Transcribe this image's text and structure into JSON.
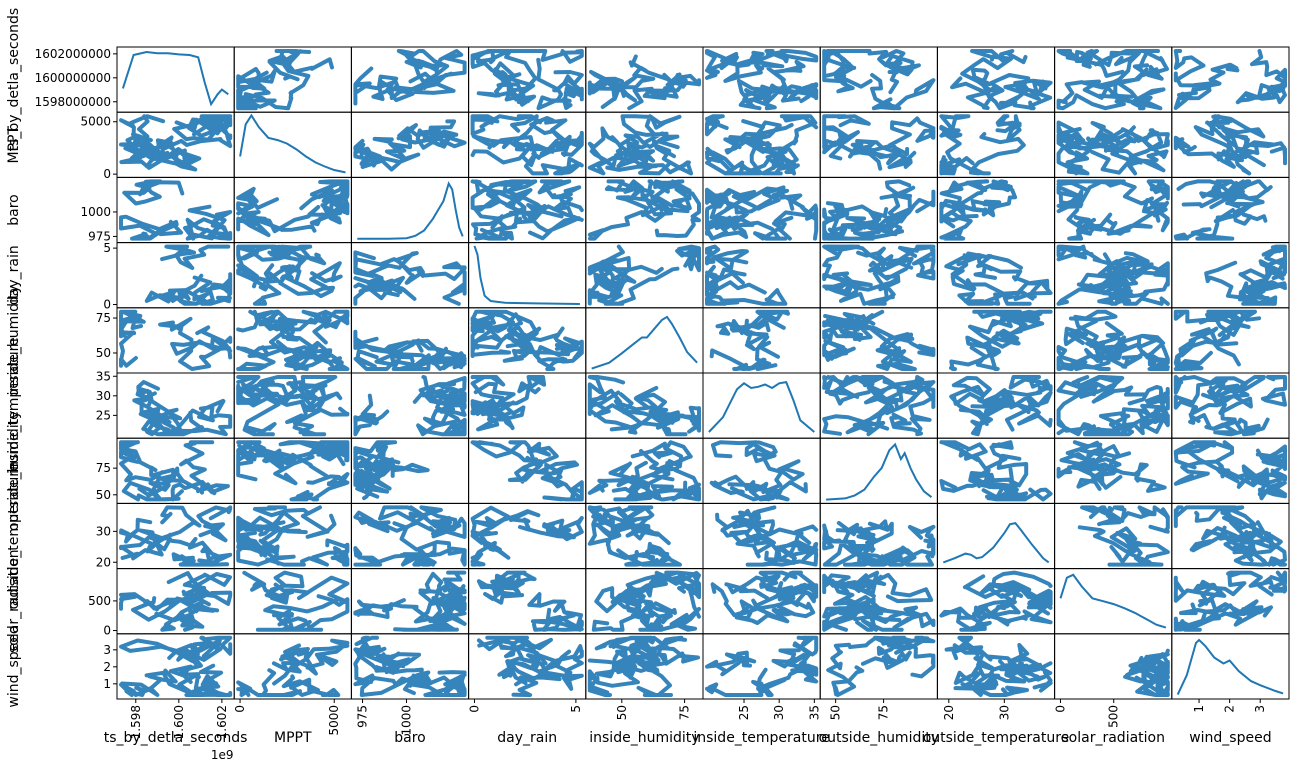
{
  "chart_data": {
    "type": "scatter_matrix",
    "variables": [
      "ts_by_detla_seconds",
      "MPPT",
      "baro",
      "day_rain",
      "inside_humidity",
      "inside_temperature",
      "outside_humidity",
      "outside_temperature",
      "solar_radiation",
      "wind_speed"
    ],
    "diagonal": "kde",
    "color": "#1f77b4",
    "ranges": [
      [
        1597400000,
        1602300000
      ],
      [
        0,
        5600
      ],
      [
        972,
        1032
      ],
      [
        0,
        5.2
      ],
      [
        38,
        80
      ],
      [
        20,
        35
      ],
      [
        45,
        100
      ],
      [
        19,
        38
      ],
      [
        0,
        990
      ],
      [
        0.3,
        3.75
      ]
    ],
    "x_ticks": [
      {
        "values": [
          1598000000,
          1600000000,
          1602000000
        ],
        "labels": [
          "1.598",
          "1.600",
          "1.602"
        ],
        "offset": "1e9"
      },
      {
        "values": [
          0,
          5000
        ],
        "labels": [
          "0",
          "5000"
        ]
      },
      {
        "values": [
          975,
          1000
        ],
        "labels": [
          "975",
          "1000"
        ]
      },
      {
        "values": [
          0,
          5
        ],
        "labels": [
          "0",
          "5"
        ]
      },
      {
        "values": [
          50,
          75
        ],
        "labels": [
          "50",
          "75"
        ]
      },
      {
        "values": [
          25,
          30,
          35
        ],
        "labels": [
          "25",
          "30",
          "35"
        ]
      },
      {
        "values": [
          50,
          75
        ],
        "labels": [
          "50",
          "75"
        ]
      },
      {
        "values": [
          20,
          30
        ],
        "labels": [
          "20",
          "30"
        ]
      },
      {
        "values": [
          0,
          500
        ],
        "labels": [
          "0",
          "500"
        ]
      },
      {
        "values": [
          1,
          2,
          3
        ],
        "labels": [
          "1",
          "2",
          "3"
        ]
      }
    ],
    "y_ticks": [
      {
        "values": [
          1598000000,
          1600000000,
          1602000000
        ],
        "labels": [
          "1598000000",
          "1600000000",
          "1602000000"
        ]
      },
      {
        "values": [
          0,
          5000
        ],
        "labels": [
          "0",
          "5000"
        ]
      },
      {
        "values": [
          975,
          1000
        ],
        "labels": [
          "975",
          "1000"
        ]
      },
      {
        "values": [
          0,
          5
        ],
        "labels": [
          "0",
          "5"
        ]
      },
      {
        "values": [
          50,
          75
        ],
        "labels": [
          "50",
          "75"
        ]
      },
      {
        "values": [
          25,
          30,
          35
        ],
        "labels": [
          "25",
          "30",
          "35"
        ]
      },
      {
        "values": [
          50,
          75
        ],
        "labels": [
          "50",
          "75"
        ]
      },
      {
        "values": [
          20,
          30
        ],
        "labels": [
          "20",
          "30"
        ]
      },
      {
        "values": [
          0,
          500
        ],
        "labels": [
          "0",
          "500"
        ]
      },
      {
        "values": [
          1,
          2,
          3
        ],
        "labels": [
          "1",
          "2",
          "3"
        ]
      }
    ],
    "kde": [
      [
        [
          1597400000,
          0.35
        ],
        [
          1597900000,
          0.92
        ],
        [
          1598500000,
          0.97
        ],
        [
          1599000000,
          0.95
        ],
        [
          1599500000,
          0.95
        ],
        [
          1600000000,
          0.93
        ],
        [
          1600500000,
          0.92
        ],
        [
          1600900000,
          0.88
        ],
        [
          1601200000,
          0.45
        ],
        [
          1601500000,
          0.08
        ],
        [
          1601800000,
          0.25
        ],
        [
          1602000000,
          0.33
        ],
        [
          1602300000,
          0.25
        ]
      ],
      [
        [
          0,
          0.3
        ],
        [
          300,
          0.85
        ],
        [
          600,
          1.0
        ],
        [
          1000,
          0.8
        ],
        [
          1500,
          0.62
        ],
        [
          2000,
          0.58
        ],
        [
          2500,
          0.52
        ],
        [
          3000,
          0.42
        ],
        [
          3500,
          0.3
        ],
        [
          4000,
          0.2
        ],
        [
          4500,
          0.13
        ],
        [
          5000,
          0.07
        ],
        [
          5600,
          0.03
        ]
      ],
      [
        [
          972,
          0.01
        ],
        [
          980,
          0.01
        ],
        [
          990,
          0.01
        ],
        [
          1000,
          0.02
        ],
        [
          1005,
          0.06
        ],
        [
          1010,
          0.15
        ],
        [
          1015,
          0.35
        ],
        [
          1018,
          0.5
        ],
        [
          1021,
          0.65
        ],
        [
          1024,
          0.95
        ],
        [
          1026,
          0.85
        ],
        [
          1028,
          0.5
        ],
        [
          1030,
          0.2
        ],
        [
          1032,
          0.05
        ]
      ],
      [
        [
          0,
          1.0
        ],
        [
          0.15,
          0.85
        ],
        [
          0.3,
          0.45
        ],
        [
          0.5,
          0.15
        ],
        [
          0.8,
          0.06
        ],
        [
          1.5,
          0.03
        ],
        [
          3.0,
          0.02
        ],
        [
          5.2,
          0.01
        ]
      ],
      [
        [
          38,
          0.02
        ],
        [
          45,
          0.12
        ],
        [
          50,
          0.28
        ],
        [
          55,
          0.45
        ],
        [
          58,
          0.55
        ],
        [
          60,
          0.55
        ],
        [
          63,
          0.7
        ],
        [
          66,
          0.85
        ],
        [
          68,
          0.9
        ],
        [
          70,
          0.78
        ],
        [
          73,
          0.55
        ],
        [
          76,
          0.3
        ],
        [
          80,
          0.12
        ]
      ],
      [
        [
          20,
          0.05
        ],
        [
          22,
          0.3
        ],
        [
          24,
          0.78
        ],
        [
          25,
          0.88
        ],
        [
          26,
          0.8
        ],
        [
          27,
          0.82
        ],
        [
          28,
          0.86
        ],
        [
          29,
          0.8
        ],
        [
          30,
          0.88
        ],
        [
          31,
          0.9
        ],
        [
          32,
          0.6
        ],
        [
          33,
          0.25
        ],
        [
          35,
          0.05
        ]
      ],
      [
        [
          45,
          0.01
        ],
        [
          55,
          0.03
        ],
        [
          60,
          0.08
        ],
        [
          65,
          0.18
        ],
        [
          70,
          0.4
        ],
        [
          74,
          0.55
        ],
        [
          78,
          0.85
        ],
        [
          81,
          0.95
        ],
        [
          84,
          0.7
        ],
        [
          86,
          0.8
        ],
        [
          89,
          0.55
        ],
        [
          92,
          0.35
        ],
        [
          96,
          0.15
        ],
        [
          100,
          0.05
        ]
      ],
      [
        [
          19,
          0.05
        ],
        [
          21,
          0.12
        ],
        [
          23,
          0.2
        ],
        [
          24,
          0.18
        ],
        [
          25,
          0.12
        ],
        [
          26,
          0.14
        ],
        [
          28,
          0.3
        ],
        [
          30,
          0.55
        ],
        [
          31,
          0.7
        ],
        [
          32,
          0.72
        ],
        [
          33,
          0.6
        ],
        [
          35,
          0.35
        ],
        [
          37,
          0.12
        ],
        [
          38,
          0.05
        ]
      ],
      [
        [
          0,
          0.55
        ],
        [
          60,
          0.9
        ],
        [
          120,
          0.95
        ],
        [
          200,
          0.75
        ],
        [
          300,
          0.55
        ],
        [
          400,
          0.5
        ],
        [
          500,
          0.45
        ],
        [
          600,
          0.38
        ],
        [
          700,
          0.3
        ],
        [
          800,
          0.2
        ],
        [
          900,
          0.1
        ],
        [
          990,
          0.05
        ]
      ],
      [
        [
          0.3,
          0.02
        ],
        [
          0.6,
          0.35
        ],
        [
          0.9,
          0.9
        ],
        [
          1.0,
          0.95
        ],
        [
          1.2,
          0.85
        ],
        [
          1.5,
          0.65
        ],
        [
          1.8,
          0.55
        ],
        [
          2.0,
          0.6
        ],
        [
          2.3,
          0.42
        ],
        [
          2.7,
          0.25
        ],
        [
          3.0,
          0.18
        ],
        [
          3.5,
          0.08
        ],
        [
          3.75,
          0.04
        ]
      ]
    ]
  }
}
